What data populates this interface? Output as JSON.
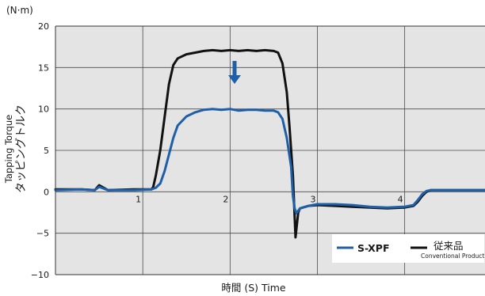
{
  "chart_data": {
    "type": "line",
    "title": "",
    "unit_label": "(N·m)",
    "xlabel": "時間 (S) Time",
    "ylabel_jp": "タッピングトルク",
    "ylabel_en": "Tapping Torque",
    "xlim": [
      0,
      4.92
    ],
    "ylim": [
      -10,
      20
    ],
    "xticks": [
      1,
      2,
      3,
      4
    ],
    "xtick_labels": [
      "1",
      "2",
      "3",
      "4"
    ],
    "yticks": [
      -10,
      -5,
      0,
      5,
      10,
      15,
      20
    ],
    "ytick_labels": [
      "−10",
      "−5",
      "0",
      "5",
      "10",
      "15",
      "20"
    ],
    "grid": true,
    "legend_position": "bottom-right",
    "annotation": "downward-arrow",
    "series": [
      {
        "name": "S-XPF",
        "color": "#1f5fa8",
        "x": [
          0,
          0.3,
          0.45,
          0.5,
          0.6,
          0.9,
          1.1,
          1.15,
          1.2,
          1.25,
          1.3,
          1.35,
          1.4,
          1.5,
          1.6,
          1.7,
          1.8,
          1.9,
          2.0,
          2.1,
          2.2,
          2.3,
          2.4,
          2.5,
          2.55,
          2.6,
          2.65,
          2.7,
          2.72,
          2.74,
          2.76,
          2.8,
          2.9,
          3.0,
          3.2,
          3.4,
          3.6,
          3.8,
          4.0,
          4.1,
          4.15,
          4.2,
          4.25,
          4.3,
          4.5,
          4.7,
          4.92
        ],
        "y": [
          0.2,
          0.3,
          0.2,
          0.6,
          0.2,
          0.2,
          0.3,
          0.5,
          1.0,
          2.5,
          4.5,
          6.5,
          8.0,
          9.1,
          9.6,
          9.9,
          10.0,
          9.9,
          10.0,
          9.8,
          9.9,
          9.9,
          9.8,
          9.8,
          9.6,
          8.8,
          6.5,
          3.0,
          -0.5,
          -2.0,
          -2.6,
          -2.0,
          -1.7,
          -1.5,
          -1.5,
          -1.6,
          -1.8,
          -1.9,
          -1.8,
          -1.6,
          -1.0,
          -0.3,
          0.1,
          0.2,
          0.2,
          0.2,
          0.2
        ]
      },
      {
        "name": "従来品",
        "name_sub": "Conventional Product",
        "color": "#111111",
        "x": [
          0,
          0.3,
          0.45,
          0.5,
          0.6,
          0.9,
          1.1,
          1.12,
          1.15,
          1.2,
          1.25,
          1.3,
          1.35,
          1.4,
          1.5,
          1.6,
          1.7,
          1.8,
          1.9,
          2.0,
          2.1,
          2.2,
          2.3,
          2.4,
          2.5,
          2.55,
          2.6,
          2.65,
          2.68,
          2.72,
          2.75,
          2.78,
          2.8,
          2.9,
          3.0,
          3.2,
          3.4,
          3.6,
          3.8,
          4.0,
          4.1,
          4.15,
          4.2,
          4.25,
          4.3,
          4.5,
          4.7,
          4.92
        ],
        "y": [
          0.3,
          0.3,
          0.2,
          0.8,
          0.2,
          0.3,
          0.3,
          0.6,
          2.0,
          5.0,
          9.0,
          13.0,
          15.3,
          16.1,
          16.6,
          16.8,
          17.0,
          17.1,
          17.0,
          17.1,
          17.0,
          17.1,
          17.0,
          17.1,
          17.0,
          16.8,
          15.5,
          12.0,
          8.0,
          2.0,
          -5.5,
          -2.5,
          -2.0,
          -1.7,
          -1.6,
          -1.7,
          -1.8,
          -1.9,
          -2.0,
          -1.9,
          -1.7,
          -1.2,
          -0.5,
          0.0,
          0.2,
          0.2,
          0.2,
          0.2
        ]
      }
    ]
  }
}
